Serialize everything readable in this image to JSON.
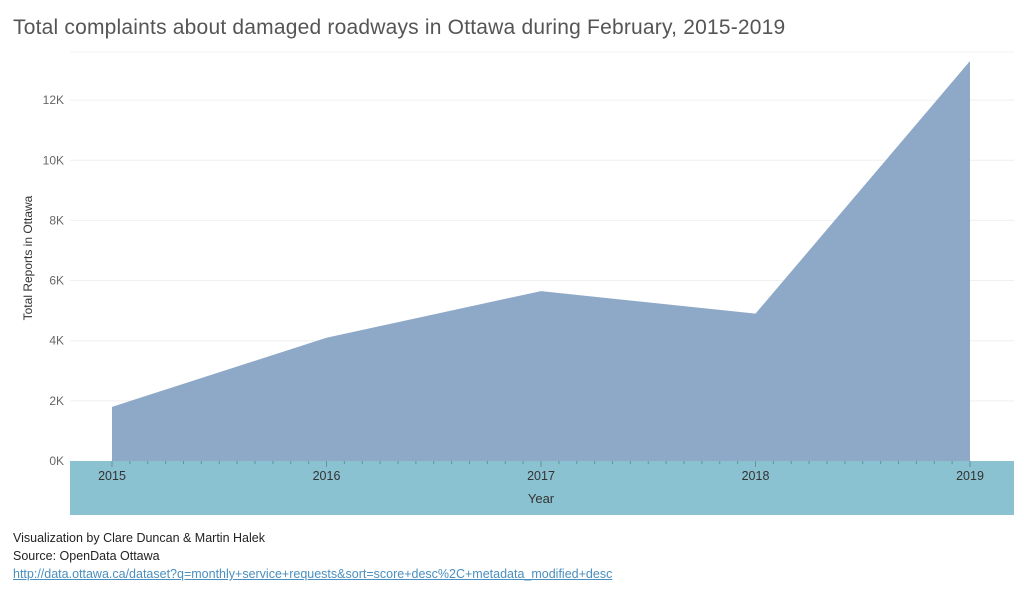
{
  "chart_data": {
    "type": "area",
    "title": "Total complaints about damaged roadways in Ottawa during February, 2015-2019",
    "xlabel": "Year",
    "ylabel": "Total Reports in Ottawa",
    "x": [
      "2015",
      "2016",
      "2017",
      "2018",
      "2019"
    ],
    "series": [
      {
        "values": [
          1800,
          4100,
          5650,
          4900,
          13300
        ],
        "color": "#8ea8c7"
      }
    ],
    "yticks": [
      "0K",
      "2K",
      "4K",
      "6K",
      "8K",
      "10K",
      "12K"
    ],
    "ylim": [
      0,
      13600
    ],
    "grid": true,
    "axis_band_color": "#8ac2d1"
  },
  "footer": {
    "credit": "Visualization by Clare Duncan & Martin Halek",
    "source": "Source: OpenData Ottawa",
    "link": "http://data.ottawa.ca/dataset?q=monthly+service+requests&sort=score+desc%2C+metadata_modified+desc"
  }
}
